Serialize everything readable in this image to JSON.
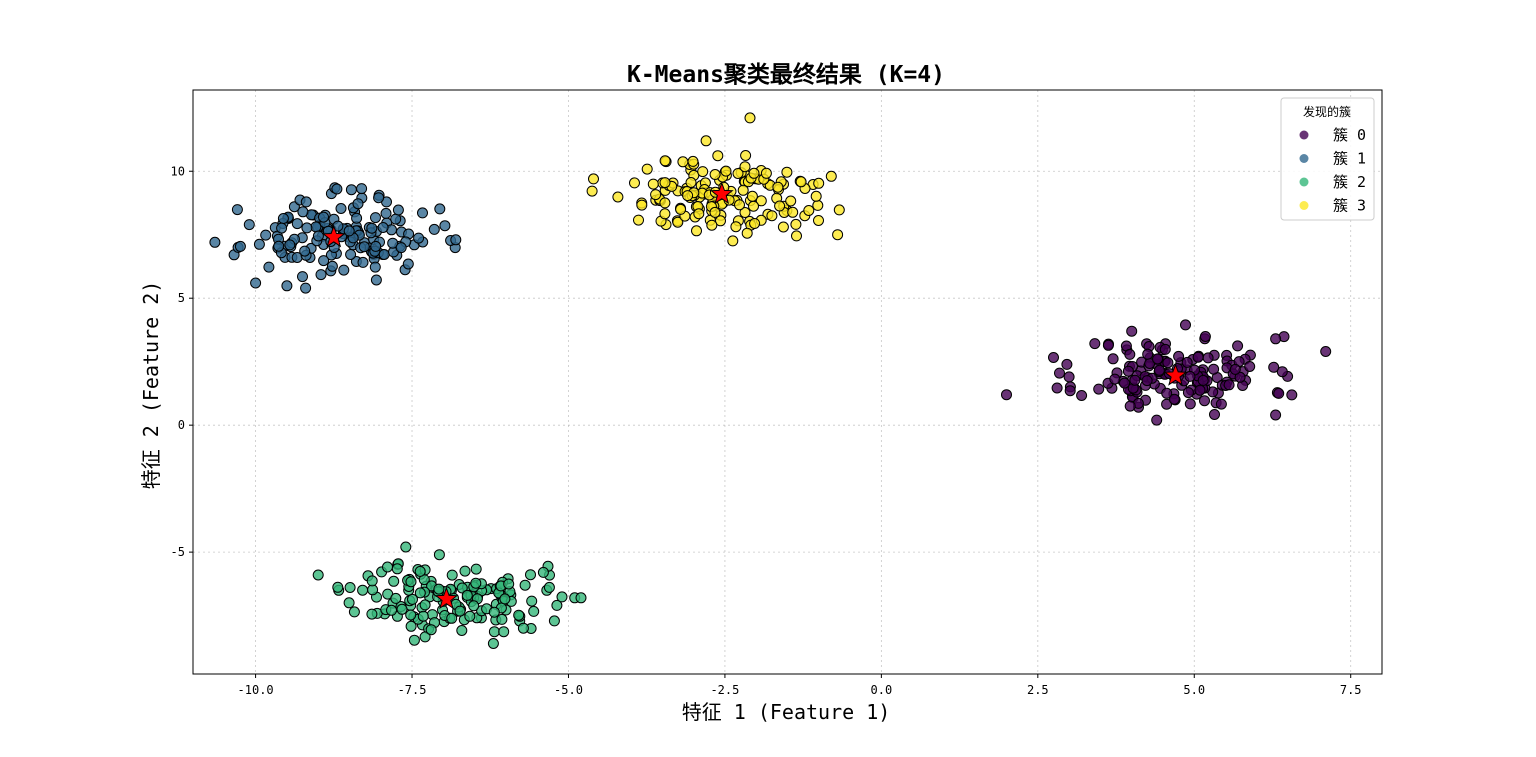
{
  "chart_data": {
    "type": "scatter",
    "title": "K-Means聚类最终结果 (K=4)",
    "xlabel": "特征 1 (Feature 1)",
    "ylabel": "特征 2 (Feature 2)",
    "xlim": [
      -11.0,
      8.0
    ],
    "ylim": [
      -9.8,
      13.2
    ],
    "grid": true,
    "x_ticks": [
      -10.0,
      -7.5,
      -5.0,
      -2.5,
      0.0,
      2.5,
      5.0,
      7.5
    ],
    "x_tick_labels": [
      "-10.0",
      "-7.5",
      "-5.0",
      "-2.5",
      "0.0",
      "2.5",
      "5.0",
      "7.5"
    ],
    "y_ticks": [
      -5,
      0,
      5,
      10
    ],
    "y_tick_labels": [
      "-5",
      "0",
      "5",
      "10"
    ],
    "legend": {
      "title": "发现的簇",
      "position": "top-right",
      "entries": [
        "簇 0",
        "簇 1",
        "簇 2",
        "簇 3"
      ]
    },
    "series": [
      {
        "name": "簇 0",
        "color": "#440154",
        "center": [
          4.7,
          2.0
        ],
        "spread": [
          0.75,
          0.75
        ],
        "count": 150,
        "seed": 11,
        "extra_points": [
          [
            2.0,
            1.2
          ],
          [
            7.1,
            2.9
          ],
          [
            4.4,
            0.2
          ],
          [
            6.3,
            0.4
          ],
          [
            6.3,
            3.4
          ],
          [
            4.0,
            3.7
          ],
          [
            3.0,
            1.9
          ]
        ]
      },
      {
        "name": "簇 1",
        "color": "#31688e",
        "center": [
          -8.7,
          7.4
        ],
        "spread": [
          0.75,
          0.75
        ],
        "count": 150,
        "seed": 23,
        "extra_points": [
          [
            -10.0,
            5.6
          ],
          [
            -6.8,
            7.3
          ],
          [
            -8.7,
            9.3
          ],
          [
            -9.2,
            5.4
          ],
          [
            -10.1,
            7.9
          ]
        ]
      },
      {
        "name": "簇 2",
        "color": "#35b779",
        "center": [
          -6.9,
          -6.8
        ],
        "spread": [
          0.75,
          0.7
        ],
        "count": 150,
        "seed": 37,
        "extra_points": [
          [
            -4.9,
            -6.8
          ],
          [
            -4.8,
            -6.8
          ],
          [
            -7.6,
            -4.8
          ],
          [
            -6.2,
            -8.6
          ],
          [
            -9.0,
            -5.9
          ],
          [
            -5.4,
            -5.8
          ]
        ]
      },
      {
        "name": "簇 3",
        "color": "#fde725",
        "center": [
          -2.6,
          9.0
        ],
        "spread": [
          0.8,
          0.75
        ],
        "count": 150,
        "seed": 51,
        "extra_points": [
          [
            -2.1,
            12.1
          ],
          [
            -4.6,
            9.7
          ],
          [
            -0.7,
            7.5
          ],
          [
            -0.8,
            9.8
          ],
          [
            -2.8,
            11.2
          ]
        ]
      }
    ],
    "centroids": [
      {
        "cluster": "簇 0",
        "x": 4.7,
        "y": 1.95
      },
      {
        "cluster": "簇 1",
        "x": -8.75,
        "y": 7.4
      },
      {
        "cluster": "簇 2",
        "x": -6.95,
        "y": -6.85
      },
      {
        "cluster": "簇 3",
        "x": -2.55,
        "y": 9.1
      }
    ],
    "centroid_color": "#ff0000"
  }
}
